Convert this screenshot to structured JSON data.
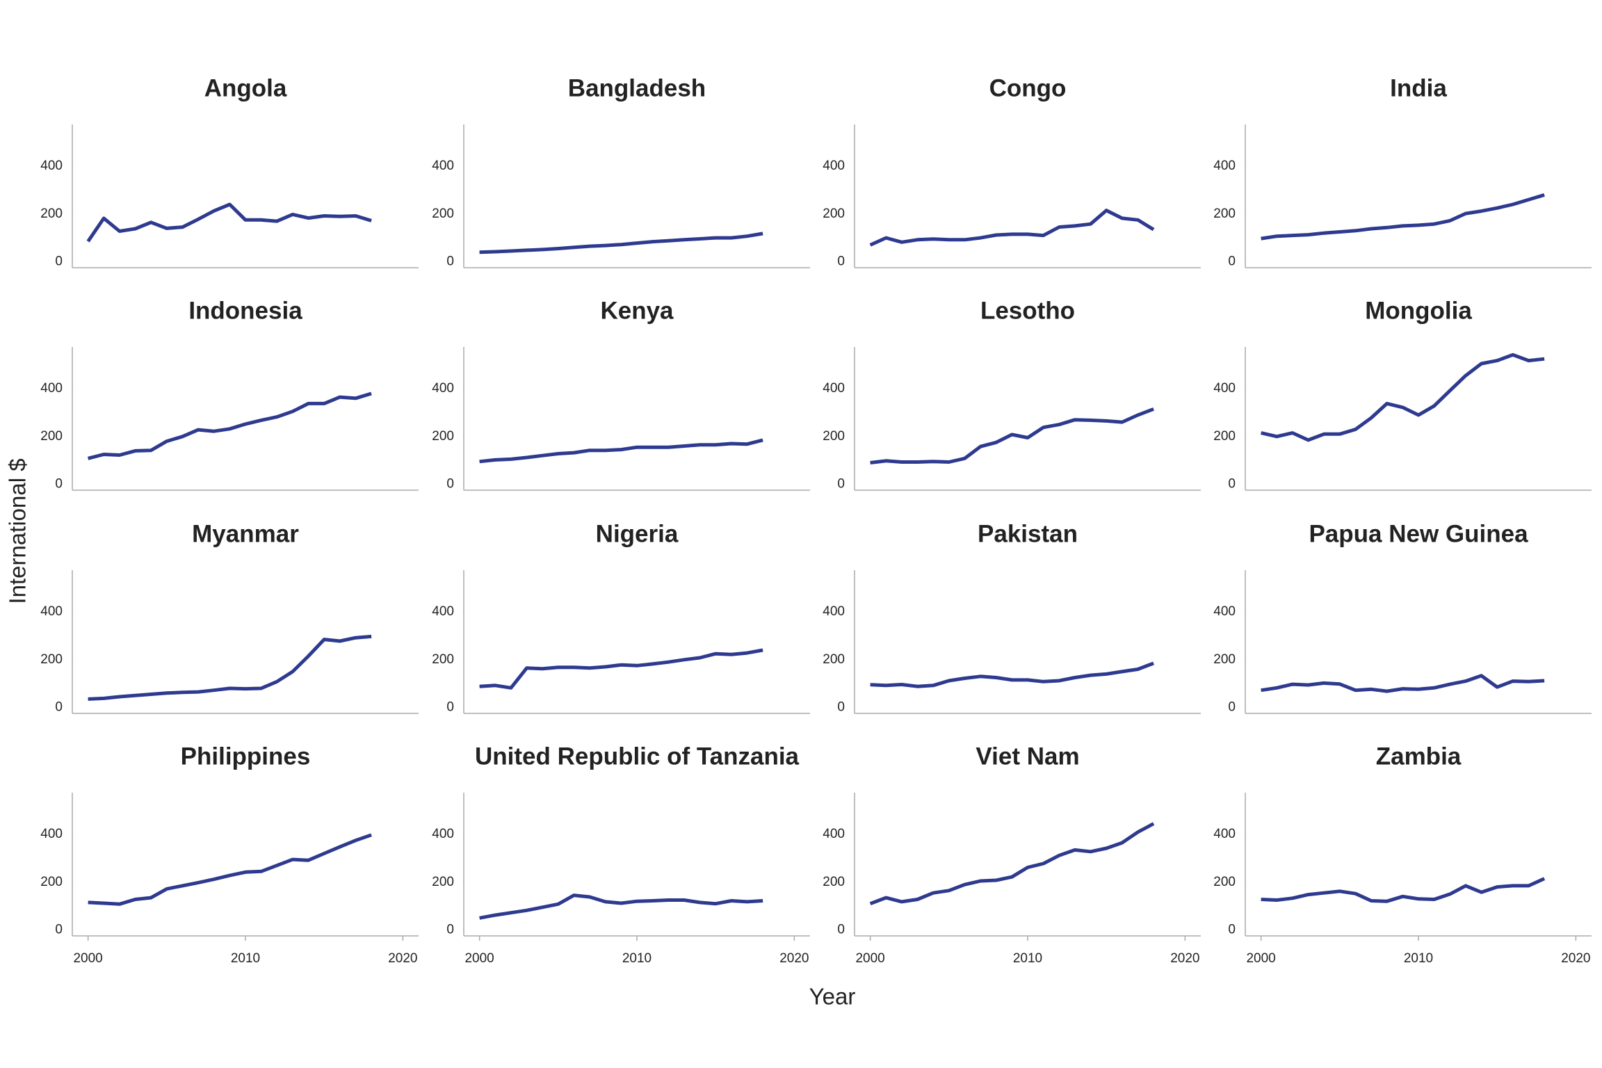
{
  "xlabel": "Year",
  "ylabel": "International $",
  "chart_data": [
    {
      "type": "line",
      "title": "Angola",
      "x": [
        2000,
        2001,
        2002,
        2003,
        2004,
        2005,
        2006,
        2007,
        2008,
        2009,
        2010,
        2011,
        2012,
        2013,
        2014,
        2015,
        2016,
        2017,
        2018
      ],
      "values": [
        85,
        182,
        128,
        138,
        165,
        140,
        145,
        178,
        213,
        240,
        175,
        175,
        170,
        198,
        183,
        192,
        190,
        192,
        172
      ],
      "color": "#2e3a8f",
      "xlim": [
        1999,
        2021
      ],
      "ylim": [
        -25,
        575
      ],
      "yticks": [
        0,
        200,
        400
      ]
    },
    {
      "type": "line",
      "title": "Bangladesh",
      "x": [
        2000,
        2001,
        2002,
        2003,
        2004,
        2005,
        2006,
        2007,
        2008,
        2009,
        2010,
        2011,
        2012,
        2013,
        2014,
        2015,
        2016,
        2017,
        2018
      ],
      "values": [
        40,
        42,
        45,
        48,
        51,
        55,
        60,
        65,
        68,
        72,
        78,
        84,
        88,
        92,
        96,
        100,
        100,
        107,
        118
      ],
      "color": "#2e3a8f",
      "xlim": [
        1999,
        2021
      ],
      "ylim": [
        -25,
        575
      ],
      "yticks": [
        0,
        200,
        400
      ]
    },
    {
      "type": "line",
      "title": "Congo",
      "x": [
        2000,
        2001,
        2002,
        2003,
        2004,
        2005,
        2006,
        2007,
        2008,
        2009,
        2010,
        2011,
        2012,
        2013,
        2014,
        2015,
        2016,
        2017,
        2018
      ],
      "values": [
        70,
        100,
        82,
        92,
        95,
        92,
        92,
        100,
        112,
        115,
        115,
        110,
        145,
        150,
        158,
        215,
        182,
        175,
        135
      ],
      "color": "#2e3a8f",
      "xlim": [
        1999,
        2021
      ],
      "ylim": [
        -25,
        575
      ],
      "yticks": [
        0,
        200,
        400
      ]
    },
    {
      "type": "line",
      "title": "India",
      "x": [
        2000,
        2001,
        2002,
        2003,
        2004,
        2005,
        2006,
        2007,
        2008,
        2009,
        2010,
        2011,
        2012,
        2013,
        2014,
        2015,
        2016,
        2017,
        2018
      ],
      "values": [
        97,
        107,
        110,
        113,
        120,
        125,
        130,
        138,
        143,
        150,
        153,
        158,
        172,
        202,
        212,
        225,
        240,
        260,
        280
      ],
      "color": "#2e3a8f",
      "xlim": [
        1999,
        2021
      ],
      "ylim": [
        -25,
        575
      ],
      "yticks": [
        0,
        200,
        400
      ]
    },
    {
      "type": "line",
      "title": "Indonesia",
      "x": [
        2000,
        2001,
        2002,
        2003,
        2004,
        2005,
        2006,
        2007,
        2008,
        2009,
        2010,
        2011,
        2012,
        2013,
        2014,
        2015,
        2016,
        2017,
        2018
      ],
      "values": [
        108,
        125,
        122,
        140,
        142,
        180,
        200,
        228,
        222,
        232,
        252,
        268,
        282,
        305,
        338,
        338,
        365,
        360,
        380
      ],
      "color": "#2e3a8f",
      "xlim": [
        1999,
        2021
      ],
      "ylim": [
        -25,
        575
      ],
      "yticks": [
        0,
        200,
        400
      ]
    },
    {
      "type": "line",
      "title": "Kenya",
      "x": [
        2000,
        2001,
        2002,
        2003,
        2004,
        2005,
        2006,
        2007,
        2008,
        2009,
        2010,
        2011,
        2012,
        2013,
        2014,
        2015,
        2016,
        2017,
        2018
      ],
      "values": [
        95,
        102,
        105,
        112,
        120,
        128,
        132,
        142,
        142,
        145,
        155,
        155,
        155,
        160,
        165,
        165,
        170,
        168,
        185
      ],
      "color": "#2e3a8f",
      "xlim": [
        1999,
        2021
      ],
      "ylim": [
        -25,
        575
      ],
      "yticks": [
        0,
        200,
        400
      ]
    },
    {
      "type": "line",
      "title": "Lesotho",
      "x": [
        2000,
        2001,
        2002,
        2003,
        2004,
        2005,
        2006,
        2007,
        2008,
        2009,
        2010,
        2011,
        2012,
        2013,
        2014,
        2015,
        2016,
        2017,
        2018
      ],
      "values": [
        90,
        98,
        93,
        93,
        95,
        93,
        108,
        158,
        175,
        208,
        195,
        238,
        250,
        270,
        268,
        265,
        260,
        290,
        315
      ],
      "color": "#2e3a8f",
      "xlim": [
        1999,
        2021
      ],
      "ylim": [
        -25,
        575
      ],
      "yticks": [
        0,
        200,
        400
      ]
    },
    {
      "type": "line",
      "title": "Mongolia",
      "x": [
        2000,
        2001,
        2002,
        2003,
        2004,
        2005,
        2006,
        2007,
        2008,
        2009,
        2010,
        2011,
        2012,
        2013,
        2014,
        2015,
        2016,
        2017,
        2018
      ],
      "values": [
        215,
        200,
        215,
        185,
        210,
        210,
        230,
        278,
        338,
        322,
        290,
        328,
        392,
        455,
        505,
        518,
        542,
        518,
        525
      ],
      "color": "#2e3a8f",
      "xlim": [
        1999,
        2021
      ],
      "ylim": [
        -25,
        575
      ],
      "yticks": [
        0,
        200,
        400
      ]
    },
    {
      "type": "line",
      "title": "Myanmar",
      "x": [
        2000,
        2001,
        2002,
        2003,
        2004,
        2005,
        2006,
        2007,
        2008,
        2009,
        2010,
        2011,
        2012,
        2013,
        2014,
        2015,
        2016,
        2017,
        2018
      ],
      "values": [
        35,
        38,
        45,
        50,
        55,
        60,
        63,
        65,
        72,
        80,
        78,
        80,
        108,
        150,
        215,
        285,
        278,
        292,
        297
      ],
      "color": "#2e3a8f",
      "xlim": [
        1999,
        2021
      ],
      "ylim": [
        -25,
        575
      ],
      "yticks": [
        0,
        200,
        400
      ]
    },
    {
      "type": "line",
      "title": "Nigeria",
      "x": [
        2000,
        2001,
        2002,
        2003,
        2004,
        2005,
        2006,
        2007,
        2008,
        2009,
        2010,
        2011,
        2012,
        2013,
        2014,
        2015,
        2016,
        2017,
        2018
      ],
      "values": [
        88,
        92,
        82,
        165,
        162,
        168,
        168,
        165,
        170,
        178,
        175,
        182,
        190,
        200,
        208,
        225,
        222,
        228,
        240
      ],
      "color": "#2e3a8f",
      "xlim": [
        1999,
        2021
      ],
      "ylim": [
        -25,
        575
      ],
      "yticks": [
        0,
        200,
        400
      ]
    },
    {
      "type": "line",
      "title": "Pakistan",
      "x": [
        2000,
        2001,
        2002,
        2003,
        2004,
        2005,
        2006,
        2007,
        2008,
        2009,
        2010,
        2011,
        2012,
        2013,
        2014,
        2015,
        2016,
        2017,
        2018
      ],
      "values": [
        95,
        92,
        96,
        88,
        92,
        112,
        122,
        130,
        125,
        115,
        115,
        108,
        112,
        125,
        135,
        140,
        150,
        160,
        185
      ],
      "color": "#2e3a8f",
      "xlim": [
        1999,
        2021
      ],
      "ylim": [
        -25,
        575
      ],
      "yticks": [
        0,
        200,
        400
      ]
    },
    {
      "type": "line",
      "title": "Papua New Guinea",
      "x": [
        2000,
        2001,
        2002,
        2003,
        2004,
        2005,
        2006,
        2007,
        2008,
        2009,
        2010,
        2011,
        2012,
        2013,
        2014,
        2015,
        2016,
        2017,
        2018
      ],
      "values": [
        72,
        82,
        97,
        94,
        102,
        98,
        72,
        76,
        68,
        78,
        76,
        82,
        97,
        110,
        133,
        85,
        110,
        108,
        112
      ],
      "color": "#2e3a8f",
      "xlim": [
        1999,
        2021
      ],
      "ylim": [
        -25,
        575
      ],
      "yticks": [
        0,
        200,
        400
      ]
    },
    {
      "type": "line",
      "title": "Philippines",
      "x": [
        2000,
        2001,
        2002,
        2003,
        2004,
        2005,
        2006,
        2007,
        2008,
        2009,
        2010,
        2011,
        2012,
        2013,
        2014,
        2015,
        2016,
        2017,
        2018
      ],
      "values": [
        115,
        112,
        108,
        128,
        135,
        172,
        185,
        198,
        212,
        228,
        242,
        245,
        270,
        295,
        292,
        320,
        348,
        375,
        398
      ],
      "color": "#2e3a8f",
      "xlim": [
        1999,
        2021
      ],
      "ylim": [
        -25,
        575
      ],
      "yticks": [
        0,
        200,
        400
      ],
      "xticks": [
        2000,
        2010,
        2020
      ]
    },
    {
      "type": "line",
      "title": "United Republic of Tanzania",
      "x": [
        2000,
        2001,
        2002,
        2003,
        2004,
        2005,
        2006,
        2007,
        2008,
        2009,
        2010,
        2011,
        2012,
        2013,
        2014,
        2015,
        2016,
        2017,
        2018
      ],
      "values": [
        50,
        62,
        72,
        82,
        95,
        108,
        145,
        138,
        118,
        112,
        120,
        122,
        125,
        125,
        115,
        110,
        122,
        118,
        122
      ],
      "color": "#2e3a8f",
      "xlim": [
        1999,
        2021
      ],
      "ylim": [
        -25,
        575
      ],
      "yticks": [
        0,
        200,
        400
      ],
      "xticks": [
        2000,
        2010,
        2020
      ]
    },
    {
      "type": "line",
      "title": "Viet Nam",
      "x": [
        2000,
        2001,
        2002,
        2003,
        2004,
        2005,
        2006,
        2007,
        2008,
        2009,
        2010,
        2011,
        2012,
        2013,
        2014,
        2015,
        2016,
        2017,
        2018
      ],
      "values": [
        110,
        135,
        118,
        128,
        155,
        165,
        190,
        205,
        208,
        222,
        262,
        278,
        312,
        335,
        328,
        342,
        365,
        410,
        445
      ],
      "color": "#2e3a8f",
      "xlim": [
        1999,
        2021
      ],
      "ylim": [
        -25,
        575
      ],
      "yticks": [
        0,
        200,
        400
      ],
      "xticks": [
        2000,
        2010,
        2020
      ]
    },
    {
      "type": "line",
      "title": "Zambia",
      "x": [
        2000,
        2001,
        2002,
        2003,
        2004,
        2005,
        2006,
        2007,
        2008,
        2009,
        2010,
        2011,
        2012,
        2013,
        2014,
        2015,
        2016,
        2017,
        2018
      ],
      "values": [
        128,
        125,
        133,
        148,
        155,
        162,
        152,
        122,
        120,
        140,
        130,
        128,
        150,
        185,
        158,
        180,
        185,
        185,
        215
      ],
      "color": "#2e3a8f",
      "xlim": [
        1999,
        2021
      ],
      "ylim": [
        -25,
        575
      ],
      "yticks": [
        0,
        200,
        400
      ],
      "xticks": [
        2000,
        2010,
        2020
      ]
    }
  ]
}
